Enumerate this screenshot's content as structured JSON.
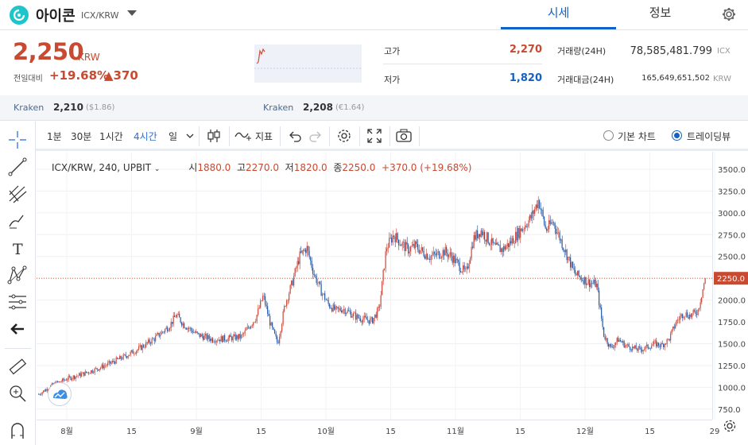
{
  "header": {
    "coin_name": "아이콘",
    "pair": "ICX/KRW",
    "tabs": [
      "시세",
      "정보"
    ],
    "active_tab": "시세"
  },
  "summary": {
    "price": "2,250",
    "price_unit": "KRW",
    "change_label": "전일대비",
    "change_pct": "+19.68%",
    "change_abs": "▲370",
    "high_label": "고가",
    "high": "2,270",
    "low_label": "저가",
    "low": "1,820",
    "volume_label": "거래량(24H)",
    "volume": "78,585,481.799",
    "volume_unit": "ICX",
    "value_label": "거래대금(24H)",
    "value": "165,649,651,502",
    "value_unit": "KRW"
  },
  "reference": [
    {
      "exchange": "Kraken",
      "price": "2,210",
      "converted": "($1.86)"
    },
    {
      "exchange": "Kraken",
      "price": "2,208",
      "converted": "(€1.64)"
    }
  ],
  "chart_toolbar": {
    "intervals": [
      "1분",
      "30분",
      "1시간",
      "4시간",
      "일"
    ],
    "active_interval": "4시간",
    "indicator_label": "지표",
    "chart_modes": [
      "기본 차트",
      "트레이딩뷰"
    ],
    "active_mode": "트레이딩뷰"
  },
  "colors": {
    "up": "#c84a31",
    "down": "#1261c4",
    "accent": "#1261c4",
    "candle_up": "#d24d3f",
    "candle_down": "#2f5fa8"
  },
  "chart_data": {
    "type": "candlestick",
    "symbol_label": "ICX/KRW, 240, UPBIT",
    "ohlc_legend": {
      "open_label": "시",
      "open": "1880.0",
      "high_label": "고",
      "high": "2270.0",
      "low_label": "저",
      "low": "1820.0",
      "close_label": "종",
      "close": "2250.0",
      "change": "+370.0 (+19.68%)"
    },
    "last_price": 2250.0,
    "last_price_label": "2250.0",
    "ylim": [
      630,
      3700
    ],
    "y_ticks": [
      750,
      1000,
      1250,
      1500,
      1750,
      2000,
      2250,
      2500,
      2750,
      3000,
      3250,
      3500
    ],
    "y_tick_labels": [
      "750.0",
      "1000.0",
      "1250.0",
      "1500.0",
      "1750.0",
      "2000.0",
      "2250.0",
      "2500.0",
      "2750.0",
      "3000.0",
      "3250.0",
      "3500.0"
    ],
    "x_ticks": [
      "8월",
      "15",
      "9월",
      "15",
      "10월",
      "15",
      "11월",
      "15",
      "12월",
      "15",
      "29"
    ],
    "price_path": [
      [
        0,
        920
      ],
      [
        2,
        1030
      ],
      [
        4,
        1100
      ],
      [
        6,
        1150
      ],
      [
        8,
        1210
      ],
      [
        10,
        1280
      ],
      [
        12,
        1360
      ],
      [
        14,
        1450
      ],
      [
        16,
        1560
      ],
      [
        18,
        1700
      ],
      [
        19,
        1830
      ],
      [
        20,
        1720
      ],
      [
        22,
        1600
      ],
      [
        24,
        1550
      ],
      [
        26,
        1560
      ],
      [
        28,
        1580
      ],
      [
        30,
        1800
      ],
      [
        31,
        2050
      ],
      [
        32,
        1720
      ],
      [
        33,
        1500
      ],
      [
        34,
        1950
      ],
      [
        35,
        2200
      ],
      [
        36,
        2500
      ],
      [
        37,
        2600
      ],
      [
        38,
        2300
      ],
      [
        39,
        2100
      ],
      [
        40,
        1950
      ],
      [
        41,
        1880
      ],
      [
        42,
        1900
      ],
      [
        43,
        1850
      ],
      [
        44,
        1800
      ],
      [
        45,
        1780
      ],
      [
        46,
        1760
      ],
      [
        47,
        1900
      ],
      [
        48,
        2600
      ],
      [
        49,
        2750
      ],
      [
        50,
        2650
      ],
      [
        51,
        2580
      ],
      [
        52,
        2620
      ],
      [
        53,
        2550
      ],
      [
        54,
        2500
      ],
      [
        55,
        2520
      ],
      [
        56,
        2560
      ],
      [
        57,
        2500
      ],
      [
        58,
        2400
      ],
      [
        59,
        2300
      ],
      [
        60,
        2700
      ],
      [
        61,
        2800
      ],
      [
        62,
        2700
      ],
      [
        63,
        2600
      ],
      [
        64,
        2580
      ],
      [
        65,
        2650
      ],
      [
        66,
        2750
      ],
      [
        67,
        2850
      ],
      [
        68,
        2950
      ],
      [
        69,
        3150
      ],
      [
        70,
        2800
      ],
      [
        71,
        2900
      ],
      [
        72,
        2700
      ],
      [
        73,
        2500
      ],
      [
        74,
        2300
      ],
      [
        75,
        2250
      ],
      [
        76,
        2200
      ],
      [
        77,
        2180
      ],
      [
        78,
        1600
      ],
      [
        79,
        1450
      ],
      [
        80,
        1550
      ],
      [
        81,
        1480
      ],
      [
        82,
        1450
      ],
      [
        83,
        1430
      ],
      [
        84,
        1460
      ],
      [
        85,
        1500
      ],
      [
        86,
        1480
      ],
      [
        87,
        1550
      ],
      [
        88,
        1750
      ],
      [
        89,
        1850
      ],
      [
        90,
        1820
      ],
      [
        91,
        1880
      ],
      [
        92,
        2250
      ]
    ]
  }
}
